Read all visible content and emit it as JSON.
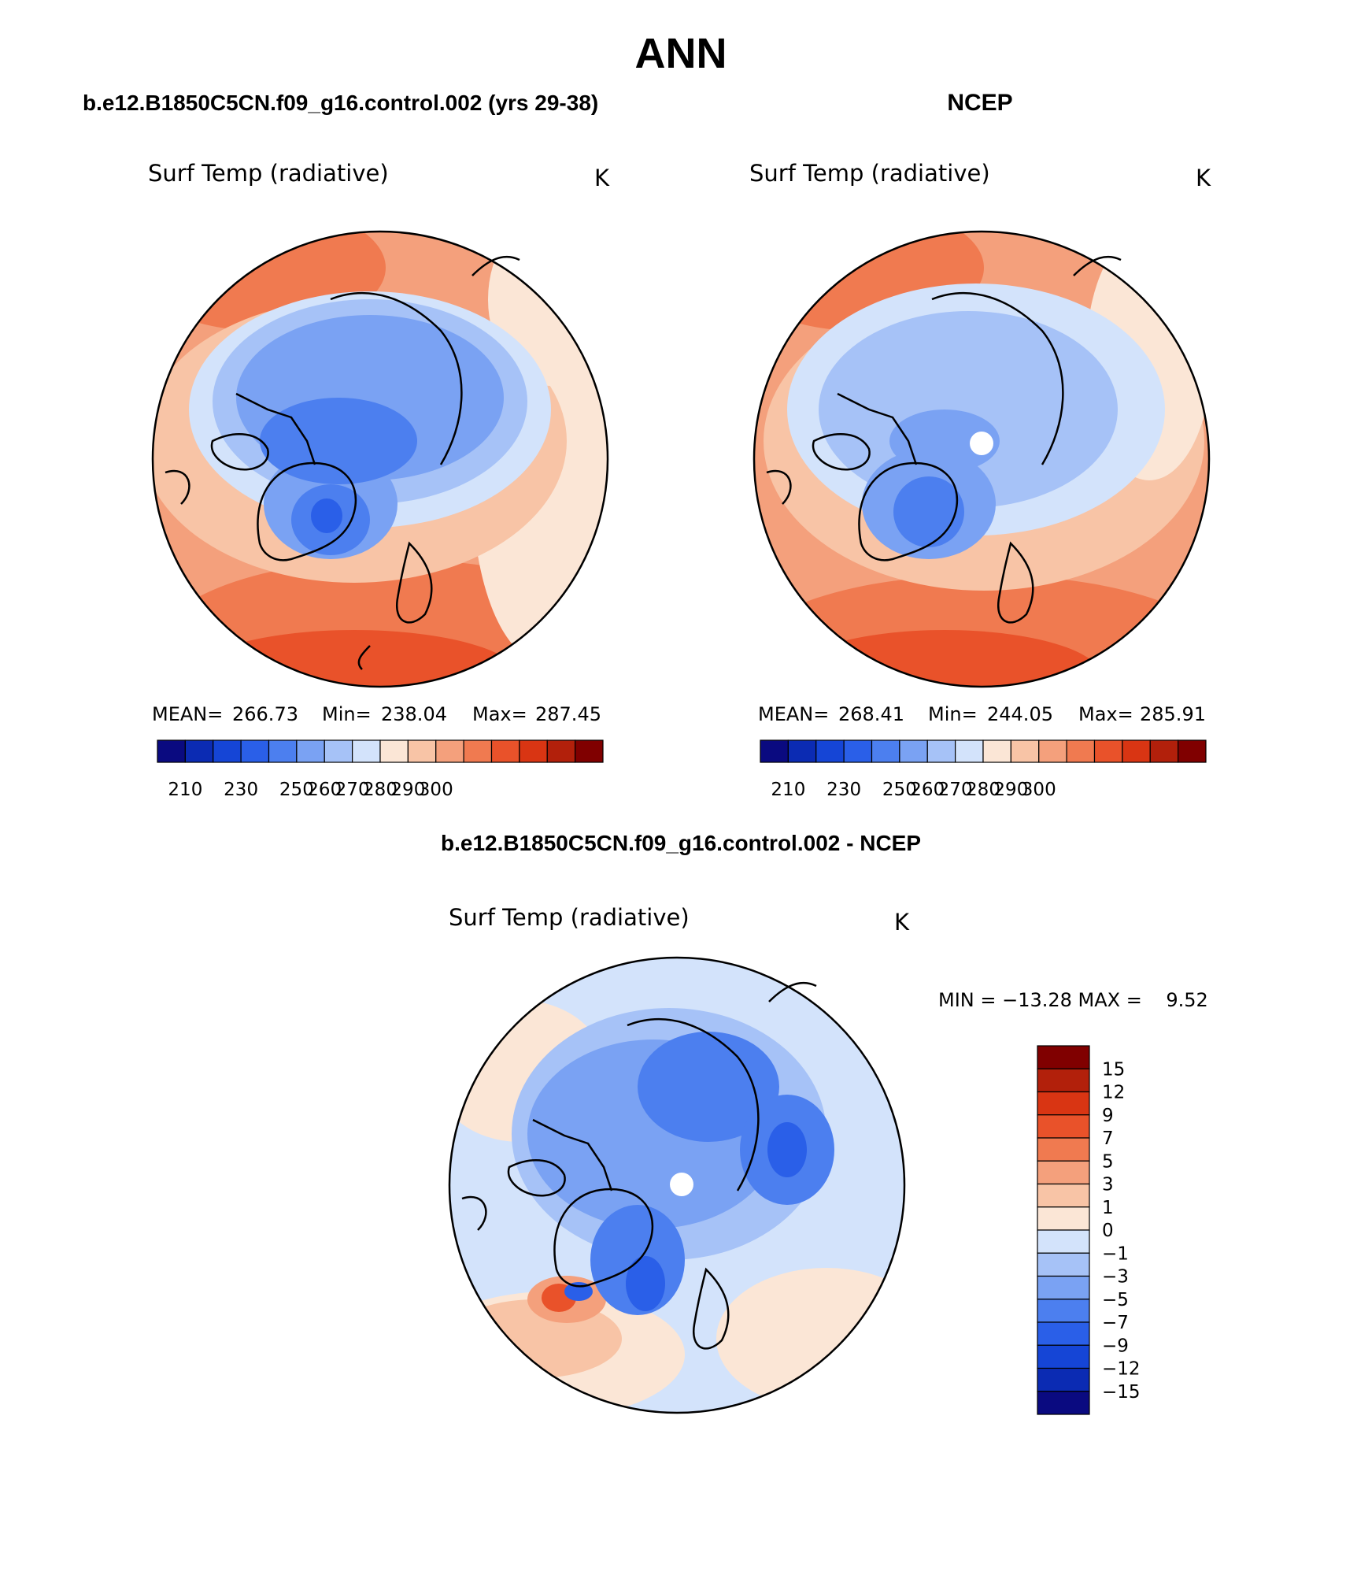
{
  "figure": {
    "title": "ANN",
    "panels": [
      {
        "id": "model",
        "header": "b.e12.B1850C5CN.f09_g16.control.002 (yrs 29-38)",
        "variable": "Surf Temp (radiative)",
        "units": "K",
        "stats": [
          {
            "label": "MEAN=",
            "value": "266.73"
          },
          {
            "label": "Min=",
            "value": "238.04"
          },
          {
            "label": "Max=",
            "value": "287.45"
          }
        ],
        "colorbar_ticks": [
          "210",
          "230",
          "250",
          "260",
          "270",
          "280",
          "290",
          "300"
        ],
        "has_pole_hole": false
      },
      {
        "id": "obs",
        "header": "NCEP",
        "variable": "Surf Temp (radiative)",
        "units": "K",
        "stats": [
          {
            "label": "MEAN=",
            "value": "268.41"
          },
          {
            "label": "Min=",
            "value": "244.05"
          },
          {
            "label": "Max=",
            "value": "285.91"
          }
        ],
        "colorbar_ticks": [
          "210",
          "230",
          "250",
          "260",
          "270",
          "280",
          "290",
          "300"
        ],
        "has_pole_hole": true
      },
      {
        "id": "diff",
        "header": "b.e12.B1850C5CN.f09_g16.control.002 - NCEP",
        "variable": "Surf Temp (radiative)",
        "units": "K",
        "minmax_text": "MIN = −13.28 MAX =    9.52",
        "colorbar_labels": [
          "15",
          "12",
          "9",
          "7",
          "5",
          "3",
          "1",
          "0",
          "−1",
          "−3",
          "−5",
          "−7",
          "−9",
          "−12",
          "−15"
        ],
        "has_pole_hole": true
      }
    ]
  },
  "colors": {
    "scale": [
      "#0a0a80",
      "#0b2bb3",
      "#1545d6",
      "#2a5fe8",
      "#4c7fef",
      "#7aa2f3",
      "#a6c2f7",
      "#d3e3fb",
      "#fbe6d6",
      "#f8c4a6",
      "#f4a07c",
      "#f07a50",
      "#e9522a",
      "#d93513",
      "#b2200b",
      "#800000"
    ],
    "land_outline": "#000000",
    "background": "#ffffff"
  }
}
